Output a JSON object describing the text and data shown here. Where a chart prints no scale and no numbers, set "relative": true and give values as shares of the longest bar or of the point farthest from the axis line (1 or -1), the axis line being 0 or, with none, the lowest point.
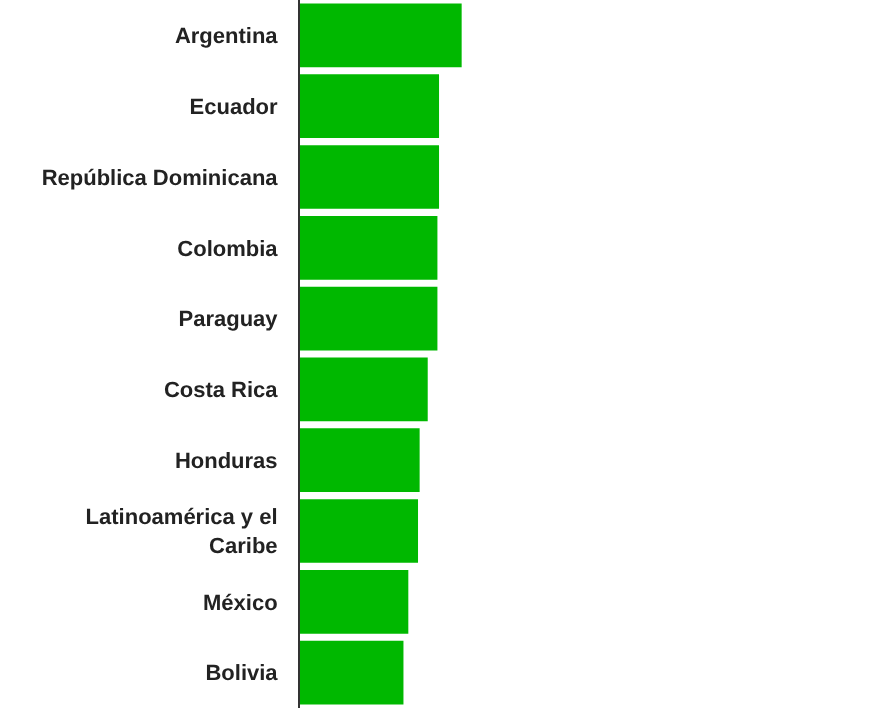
{
  "chart_data": {
    "type": "bar",
    "orientation": "horizontal",
    "relative": true,
    "categories": [
      "Argentina",
      "Ecuador",
      "República Dominicana",
      "Colombia",
      "Paraguay",
      "Costa Rica",
      "Honduras",
      "Latinoamérica y el Caribe",
      "México",
      "Bolivia"
    ],
    "values": [
      1,
      0.86,
      0.86,
      0.85,
      0.85,
      0.79,
      0.74,
      0.73,
      0.67,
      0.64
    ],
    "color": "#00b800"
  }
}
